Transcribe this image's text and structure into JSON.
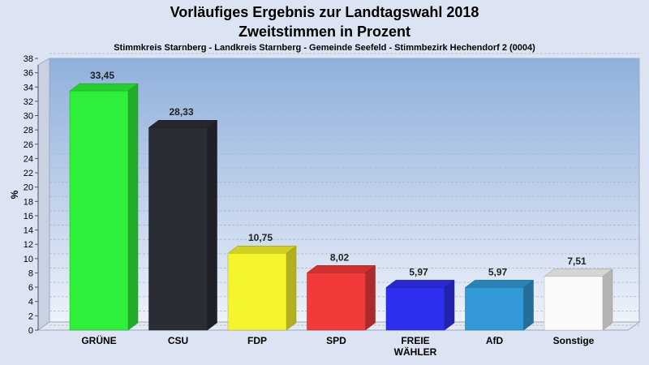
{
  "title": "Vorläufiges Ergebnis zur Landtagswahl 2018",
  "title2": "Zweitstimmen in Prozent",
  "subtitle": "Stimmkreis Starnberg - Landkreis Starnberg - Gemeinde Seefeld - Stimmbezirk Hechendorf 2 (0004)",
  "chart_data": {
    "type": "bar",
    "ylabel": "%",
    "ylim": [
      0,
      38
    ],
    "ytick_step": 2,
    "grid": true,
    "categories": [
      "GRÜNE",
      "CSU",
      "FDP",
      "SPD",
      "FREIE\nWÄHLER",
      "AfD",
      "Sonstige"
    ],
    "values": [
      33.45,
      28.33,
      10.75,
      8.02,
      5.97,
      5.97,
      7.51
    ],
    "value_labels": [
      "33,45",
      "28,33",
      "10,75",
      "8,02",
      "5,97",
      "5,97",
      "7,51"
    ],
    "colors": [
      "#2ef03a",
      "#2b2d36",
      "#f5f52e",
      "#f23a3a",
      "#2f2ff0",
      "#3399d6",
      "#fafafa"
    ]
  }
}
